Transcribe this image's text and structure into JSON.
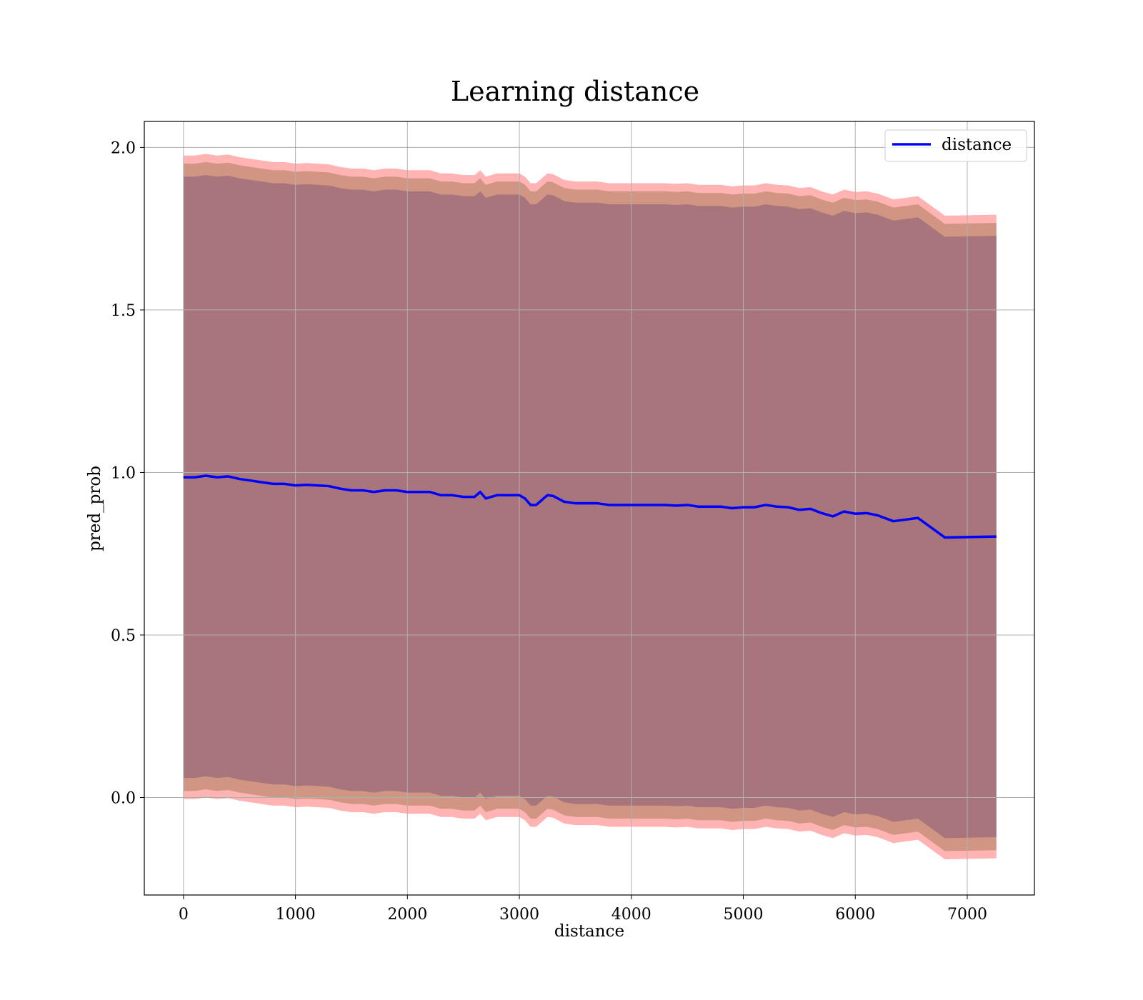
{
  "chart_data": {
    "type": "line",
    "title": "Learning distance",
    "xlabel": "distance",
    "ylabel": "pred_prob",
    "xlim": [
      -350,
      7600
    ],
    "ylim": [
      -0.3,
      2.08
    ],
    "xticks": [
      0,
      1000,
      2000,
      3000,
      4000,
      5000,
      6000,
      7000
    ],
    "yticks": [
      0.0,
      0.5,
      1.0,
      1.5,
      2.0
    ],
    "xtick_labels": [
      "0",
      "1000",
      "2000",
      "3000",
      "4000",
      "5000",
      "6000",
      "7000"
    ],
    "ytick_labels": [
      "0.0",
      "0.5",
      "1.0",
      "1.5",
      "2.0"
    ],
    "grid": true,
    "legend_position": "top-right",
    "colors": {
      "line": "#0000ff",
      "band_outer": "#ff9999",
      "band_middle": "#c9907a",
      "band_inner": "#a0707a"
    },
    "series": [
      {
        "name": "distance",
        "x": [
          0,
          100,
          200,
          300,
          400,
          500,
          600,
          700,
          800,
          900,
          1000,
          1100,
          1200,
          1300,
          1400,
          1500,
          1600,
          1700,
          1800,
          1900,
          2000,
          2100,
          2200,
          2300,
          2400,
          2500,
          2600,
          2650,
          2700,
          2800,
          2900,
          3000,
          3050,
          3100,
          3150,
          3200,
          3250,
          3300,
          3400,
          3500,
          3600,
          3700,
          3800,
          3900,
          4000,
          4100,
          4200,
          4300,
          4400,
          4500,
          4600,
          4700,
          4800,
          4900,
          5000,
          5100,
          5200,
          5300,
          5400,
          5500,
          5600,
          5700,
          5800,
          5900,
          6000,
          6100,
          6200,
          6340,
          6560,
          6800,
          7260
        ],
        "y": [
          0.985,
          0.985,
          0.99,
          0.985,
          0.988,
          0.98,
          0.975,
          0.97,
          0.965,
          0.965,
          0.96,
          0.962,
          0.96,
          0.958,
          0.95,
          0.945,
          0.945,
          0.94,
          0.945,
          0.945,
          0.94,
          0.94,
          0.94,
          0.93,
          0.93,
          0.925,
          0.925,
          0.94,
          0.92,
          0.93,
          0.93,
          0.93,
          0.92,
          0.9,
          0.9,
          0.915,
          0.93,
          0.928,
          0.91,
          0.905,
          0.905,
          0.905,
          0.9,
          0.9,
          0.9,
          0.9,
          0.9,
          0.9,
          0.898,
          0.9,
          0.895,
          0.895,
          0.895,
          0.89,
          0.893,
          0.893,
          0.9,
          0.895,
          0.893,
          0.885,
          0.888,
          0.875,
          0.865,
          0.88,
          0.873,
          0.875,
          0.868,
          0.85,
          0.86,
          0.8,
          0.803
        ]
      }
    ],
    "bands": [
      {
        "half_width_start": 0.99,
        "half_width_end": 0.99
      },
      {
        "half_width_start": 0.965,
        "half_width_end": 0.965
      },
      {
        "half_width_start": 0.925,
        "half_width_end": 0.925
      }
    ]
  }
}
